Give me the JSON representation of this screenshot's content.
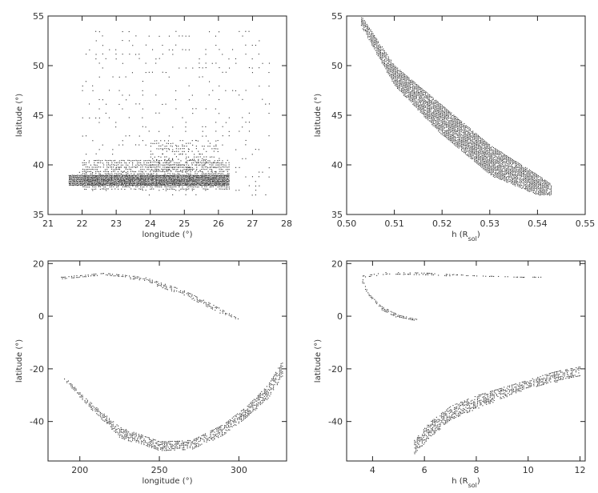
{
  "chart_data": [
    {
      "type": "scatter",
      "xlabel": "longitude (°)",
      "ylabel": "latitude (°)",
      "xlim": [
        21,
        28
      ],
      "ylim": [
        35,
        55
      ],
      "xticks": [
        21,
        22,
        23,
        24,
        25,
        26,
        27,
        28
      ],
      "yticks": [
        35,
        40,
        45,
        50,
        55
      ],
      "xtick_labels": [
        "21",
        "22",
        "23",
        "24",
        "25",
        "26",
        "27",
        "28"
      ],
      "ytick_labels": [
        "35",
        "40",
        "45",
        "50",
        "55"
      ],
      "series": [
        {
          "regions": [
            {
              "x_range": [
                21.6,
                26.3
              ],
              "y_range": [
                38.0,
                39.0
              ],
              "density": 3.0
            },
            {
              "x_range": [
                22.0,
                26.3
              ],
              "y_range": [
                37.5,
                40.5
              ],
              "density": 1.2
            },
            {
              "x_range": [
                24.0,
                26.0
              ],
              "y_range": [
                39.5,
                42.5
              ],
              "density": 0.8
            },
            {
              "x_range": [
                21.9,
                27.5
              ],
              "y_range": [
                37.0,
                53.5
              ],
              "density": 0.28
            }
          ]
        }
      ]
    },
    {
      "type": "scatter",
      "xlabel": "h (R_sol)",
      "ylabel": "latitude (°)",
      "xlim": [
        0.5,
        0.55
      ],
      "ylim": [
        35,
        55
      ],
      "xticks": [
        0.5,
        0.51,
        0.52,
        0.53,
        0.54,
        0.55
      ],
      "yticks": [
        35,
        40,
        45,
        50,
        55
      ],
      "xtick_labels": [
        "0.50",
        "0.51",
        "0.52",
        "0.53",
        "0.54",
        "0.55"
      ],
      "ytick_labels": [
        "35",
        "40",
        "45",
        "50",
        "55"
      ],
      "series": [
        {
          "bands": [
            {
              "upper": [
                [
                  0.503,
                  55.0
                ],
                [
                  0.51,
                  50.0
                ],
                [
                  0.52,
                  46.0
                ],
                [
                  0.53,
                  42.0
                ],
                [
                  0.54,
                  39.0
                ],
                [
                  0.543,
                  38.0
                ]
              ],
              "lower": [
                [
                  0.503,
                  54.0
                ],
                [
                  0.51,
                  48.0
                ],
                [
                  0.52,
                  43.0
                ],
                [
                  0.53,
                  39.0
                ],
                [
                  0.54,
                  37.0
                ],
                [
                  0.543,
                  37.0
                ]
              ],
              "density": 0.9
            }
          ]
        }
      ]
    },
    {
      "type": "scatter",
      "xlabel": "longitude (°)",
      "ylabel": "latitude (°)",
      "xlim": [
        180,
        330
      ],
      "ylim": [
        -55,
        21
      ],
      "xticks": [
        200,
        250,
        300
      ],
      "yticks": [
        -40,
        -20,
        0,
        20
      ],
      "xtick_labels": [
        "200",
        "250",
        "300"
      ],
      "ytick_labels": [
        "-40",
        "-20",
        "0",
        "20"
      ],
      "series": [
        {
          "bands": [
            {
              "upper": [
                [
                  188,
                  15.0
                ],
                [
                  215,
                  16.5
                ],
                [
                  240,
                  15.0
                ],
                [
                  265,
                  10.0
                ],
                [
                  285,
                  4.0
                ],
                [
                  300,
                  -1.0
                ]
              ],
              "lower": [
                [
                  188,
                  14.0
                ],
                [
                  215,
                  16.0
                ],
                [
                  240,
                  13.5
                ],
                [
                  265,
                  8.0
                ],
                [
                  285,
                  2.0
                ],
                [
                  300,
                  -1.5
                ]
              ],
              "density": 0.5
            },
            {
              "upper": [
                [
                  190,
                  -23.0
                ],
                [
                  205,
                  -32.0
                ],
                [
                  225,
                  -42.0
                ],
                [
                  250,
                  -47.5
                ],
                [
                  270,
                  -47.0
                ],
                [
                  290,
                  -41.0
                ],
                [
                  305,
                  -34.0
                ],
                [
                  318,
                  -26.0
                ],
                [
                  327,
                  -17.0
                ]
              ],
              "lower": [
                [
                  190,
                  -24.0
                ],
                [
                  205,
                  -34.0
                ],
                [
                  225,
                  -46.0
                ],
                [
                  250,
                  -51.0
                ],
                [
                  270,
                  -50.5
                ],
                [
                  290,
                  -45.0
                ],
                [
                  305,
                  -38.0
                ],
                [
                  318,
                  -31.0
                ],
                [
                  327,
                  -23.0
                ]
              ],
              "density": 0.6
            }
          ]
        }
      ]
    },
    {
      "type": "scatter",
      "xlabel": "h (R_sol)",
      "ylabel": "latitude (°)",
      "xlim": [
        3,
        12.2
      ],
      "ylim": [
        -55,
        21
      ],
      "xticks": [
        4,
        6,
        8,
        10,
        12
      ],
      "yticks": [
        -40,
        -20,
        0,
        20
      ],
      "xtick_labels": [
        "4",
        "6",
        "8",
        "10",
        "12"
      ],
      "ytick_labels": [
        "-40",
        "-20",
        "0",
        "20"
      ],
      "series": [
        {
          "bands": [
            {
              "upper": [
                [
                  3.6,
                  15.5
                ],
                [
                  4.5,
                  16.8
                ],
                [
                  6.0,
                  16.6
                ],
                [
                  8.0,
                  15.5
                ],
                [
                  10.0,
                  15.0
                ],
                [
                  10.6,
                  15.0
                ]
              ],
              "lower": [
                [
                  3.6,
                  14.5
                ],
                [
                  4.5,
                  16.0
                ],
                [
                  6.0,
                  16.0
                ],
                [
                  8.0,
                  15.0
                ],
                [
                  10.0,
                  14.5
                ],
                [
                  10.6,
                  14.5
                ]
              ],
              "density": 0.4
            },
            {
              "upper": [
                [
                  3.6,
                  14.0
                ],
                [
                  3.8,
                  9.0
                ],
                [
                  4.3,
                  4.0
                ],
                [
                  5.0,
                  0.5
                ],
                [
                  5.7,
                  -1.0
                ]
              ],
              "lower": [
                [
                  3.6,
                  12.0
                ],
                [
                  3.9,
                  7.0
                ],
                [
                  4.4,
                  2.0
                ],
                [
                  5.0,
                  -0.5
                ],
                [
                  5.7,
                  -1.5
                ]
              ],
              "density": 0.7
            },
            {
              "upper": [
                [
                  5.6,
                  -47.0
                ],
                [
                  6.2,
                  -40.0
                ],
                [
                  7.0,
                  -34.0
                ],
                [
                  8.0,
                  -30.0
                ],
                [
                  9.0,
                  -27.0
                ],
                [
                  10.0,
                  -24.0
                ],
                [
                  11.0,
                  -21.0
                ],
                [
                  12.0,
                  -19.0
                ]
              ],
              "lower": [
                [
                  5.6,
                  -52.0
                ],
                [
                  6.2,
                  -46.0
                ],
                [
                  7.0,
                  -39.0
                ],
                [
                  8.0,
                  -35.0
                ],
                [
                  9.0,
                  -31.0
                ],
                [
                  10.0,
                  -27.0
                ],
                [
                  11.0,
                  -25.0
                ],
                [
                  12.0,
                  -22.5
                ]
              ],
              "density": 0.6
            }
          ]
        }
      ]
    }
  ]
}
